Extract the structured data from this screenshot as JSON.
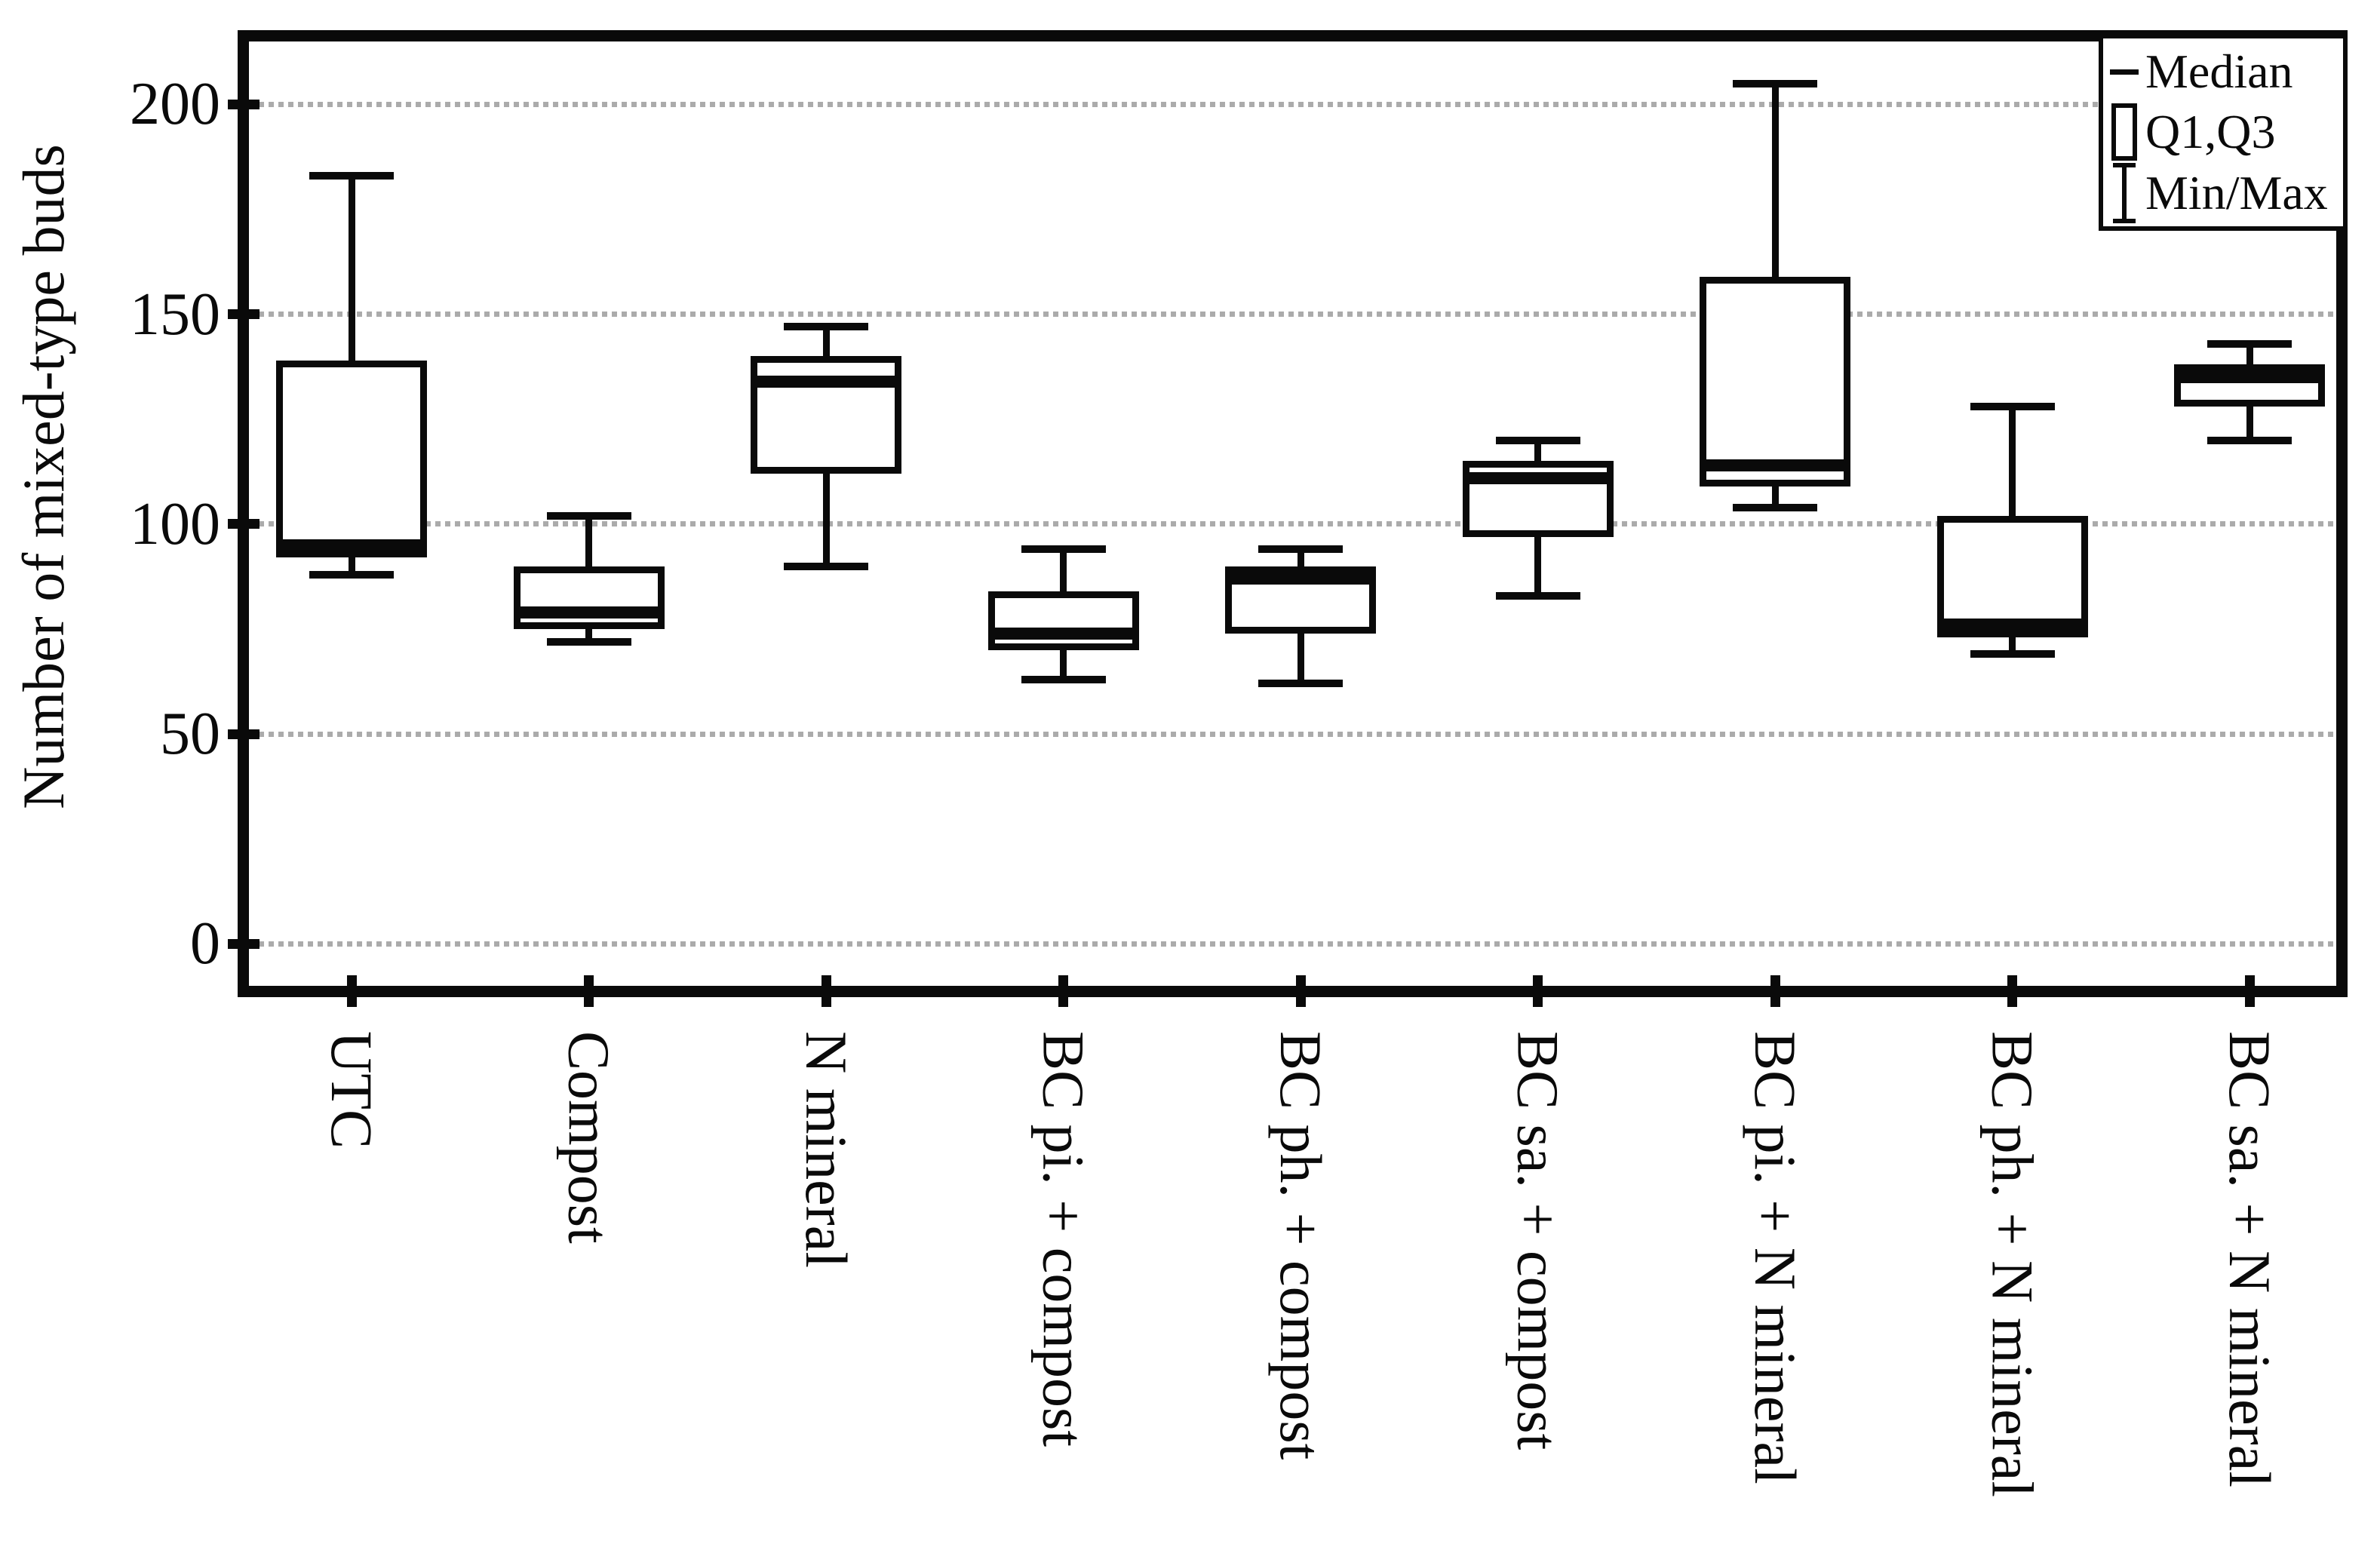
{
  "figure": {
    "background": "#ffffff",
    "stroke_color": "#0a0a0a",
    "grid_color": "#ababab"
  },
  "chart_data": {
    "type": "boxplot",
    "title": "",
    "xlabel": "",
    "ylabel": "Number of mixed-type buds",
    "categories": [
      "UTC",
      "Compost",
      "N mineral",
      "BC pi. + compost",
      "BC ph. + compost",
      "BC sa. + compost",
      "BC pi. + N mineral",
      "BC ph. + N mineral",
      "BC sa. + N mineral"
    ],
    "series": [
      {
        "name": "UTC",
        "min": 88,
        "q1": 92,
        "median": 95,
        "q3": 139,
        "max": 183
      },
      {
        "name": "Compost",
        "min": 72,
        "q1": 75,
        "median": 79,
        "q3": 90,
        "max": 102
      },
      {
        "name": "N mineral",
        "min": 90,
        "q1": 112,
        "median": 134,
        "q3": 140,
        "max": 147
      },
      {
        "name": "BC pi. + compost",
        "min": 63,
        "q1": 70,
        "median": 74,
        "q3": 84,
        "max": 94
      },
      {
        "name": "BC ph. + compost",
        "min": 62,
        "q1": 74,
        "median": 87,
        "q3": 90,
        "max": 94
      },
      {
        "name": "BC sa. + compost",
        "min": 83,
        "q1": 97,
        "median": 111,
        "q3": 115,
        "max": 120
      },
      {
        "name": "BC pi. + N mineral",
        "min": 104,
        "q1": 109,
        "median": 114,
        "q3": 159,
        "max": 205
      },
      {
        "name": "BC ph. + N mineral",
        "min": 69,
        "q1": 73,
        "median": 76,
        "q3": 102,
        "max": 128
      },
      {
        "name": "BC sa. + N mineral",
        "min": 120,
        "q1": 128,
        "median": 135,
        "q3": 138,
        "max": 143
      }
    ],
    "yticks": [
      0,
      50,
      100,
      150,
      200
    ],
    "ylim": [
      -10,
      215
    ],
    "grid": "horizontal dotted",
    "legend": {
      "position": "top-right",
      "entries": [
        "Median",
        "Q1,Q3",
        "Min/Max"
      ]
    }
  }
}
